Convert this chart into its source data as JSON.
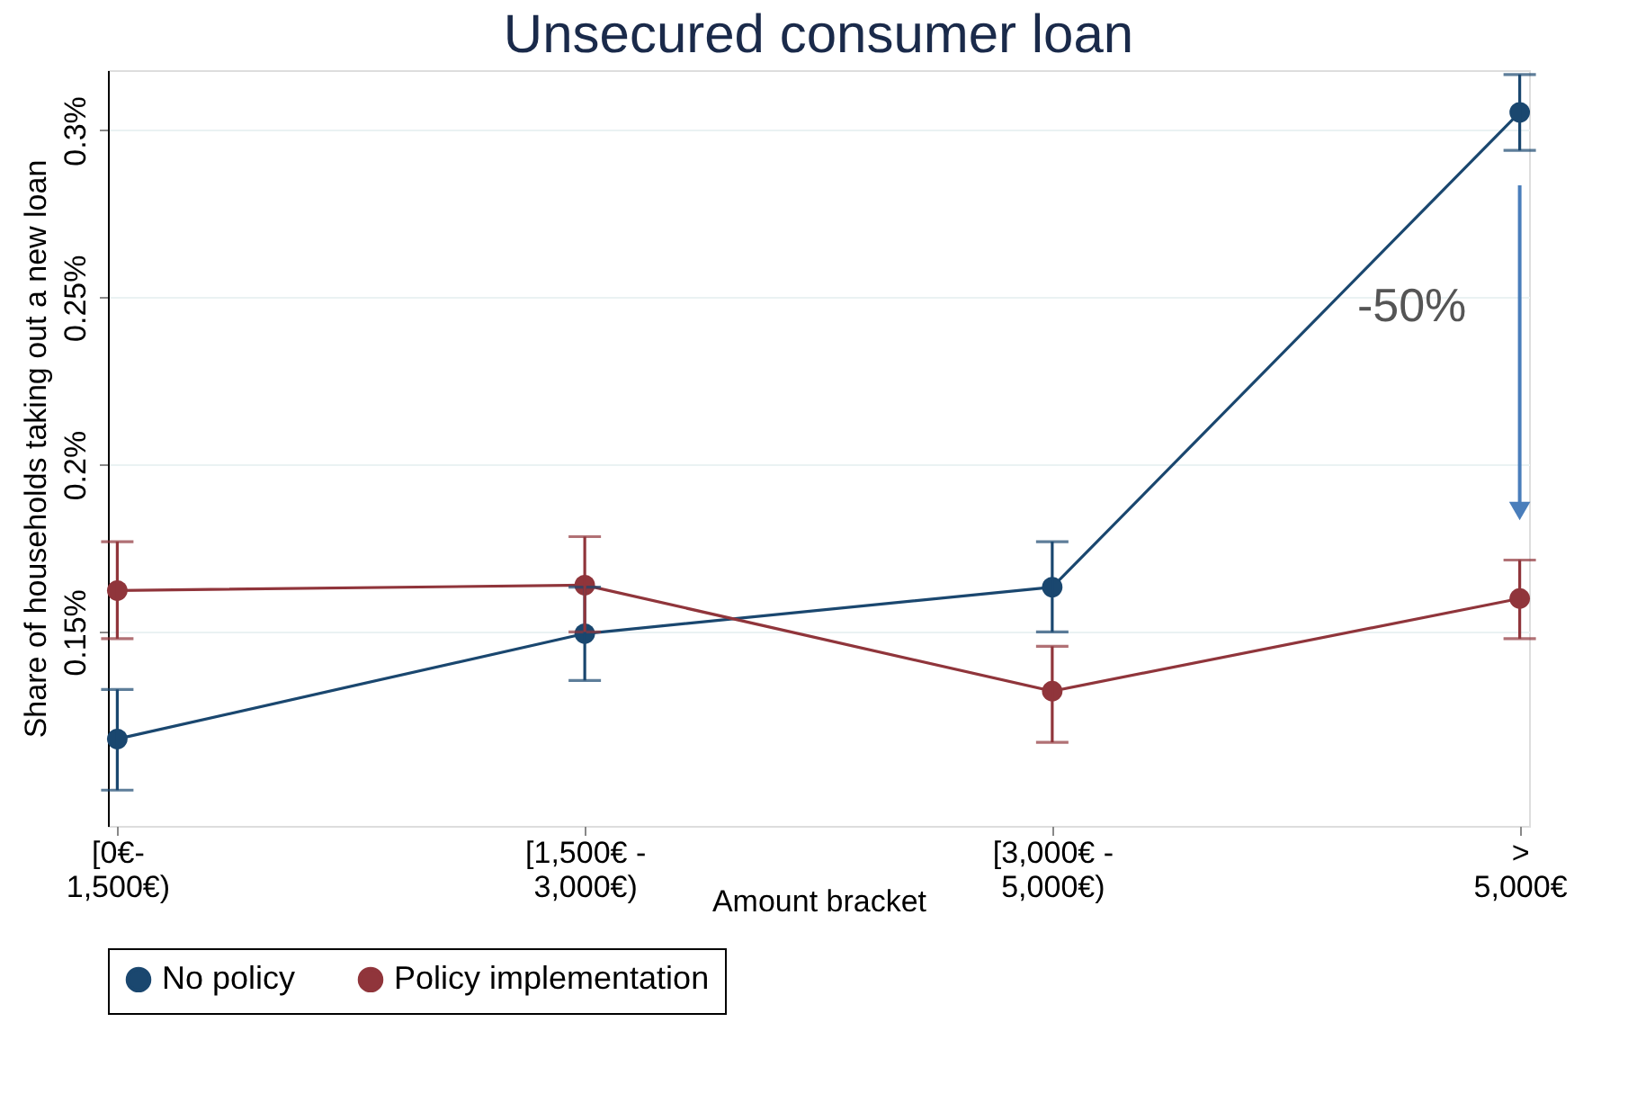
{
  "chart_data": {
    "type": "line",
    "title": "Unsecured consumer loan",
    "xlabel": "Amount bracket",
    "ylabel": "Share of households taking out a new loan",
    "categories": [
      "[0€-\n1,500€)",
      "[1,500€ -\n3,000€)",
      "[3,000€ -\n5,000€)",
      ">\n5,000€"
    ],
    "series": [
      {
        "name": "No policy",
        "color": "#1a476f",
        "values": [
          0.118,
          0.1495,
          0.1634,
          0.3054
        ],
        "errors": [
          [
            0.1027,
            0.1328
          ],
          [
            0.1355,
            0.1634
          ],
          [
            0.15,
            0.177
          ],
          [
            0.294,
            0.3167
          ]
        ]
      },
      {
        "name": "Policy implementation",
        "color": "#90353b",
        "values": [
          0.1624,
          0.164,
          0.1323,
          0.16
        ],
        "errors": [
          [
            0.148,
            0.177
          ],
          [
            0.15,
            0.1785
          ],
          [
            0.117,
            0.1457
          ],
          [
            0.148,
            0.1715
          ]
        ]
      }
    ],
    "annotations": [
      "-50%"
    ],
    "ylim": [
      0.092,
      0.318
    ],
    "yticks": [
      {
        "value": 0.15,
        "label": "0.15%"
      },
      {
        "value": 0.2,
        "label": "0.2%"
      },
      {
        "value": 0.25,
        "label": "0.25%"
      },
      {
        "value": 0.3,
        "label": "0.3%"
      }
    ],
    "grid": "y",
    "legend": "bottom",
    "marker": "circle",
    "line_style": "solid"
  }
}
